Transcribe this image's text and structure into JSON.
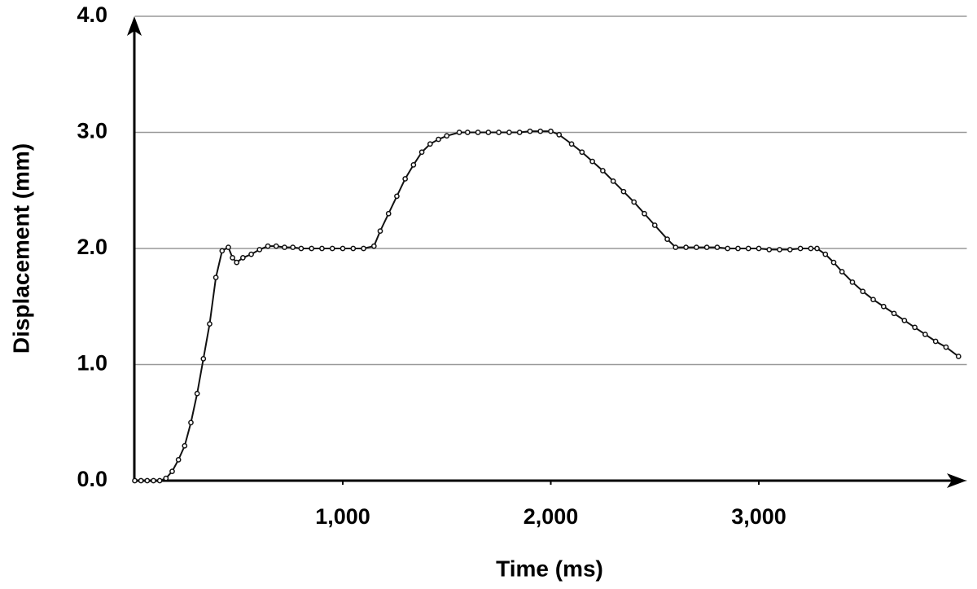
{
  "chart_data": {
    "type": "line",
    "x_label": "Time (ms)",
    "y_label": "Displacement (mm)",
    "xlim": [
      0,
      4000
    ],
    "ylim": [
      0,
      4
    ],
    "xticks": [
      {
        "value": 1000,
        "label": "1,000"
      },
      {
        "value": 2000,
        "label": "2,000"
      },
      {
        "value": 3000,
        "label": "3,000"
      }
    ],
    "yticks": [
      {
        "value": 0,
        "label": "0.0"
      },
      {
        "value": 1,
        "label": "1.0"
      },
      {
        "value": 2,
        "label": "2.0"
      },
      {
        "value": 3,
        "label": "3.0"
      },
      {
        "value": 4,
        "label": "4.0"
      }
    ],
    "grid": true,
    "markers": true,
    "series": [
      {
        "color": "#111111",
        "x": [
          0,
          30,
          60,
          90,
          120,
          150,
          180,
          210,
          240,
          270,
          300,
          330,
          360,
          390,
          420,
          450,
          470,
          490,
          520,
          560,
          600,
          640,
          680,
          720,
          760,
          800,
          850,
          900,
          950,
          1000,
          1050,
          1100,
          1150,
          1180,
          1220,
          1260,
          1300,
          1340,
          1380,
          1420,
          1460,
          1500,
          1560,
          1600,
          1650,
          1700,
          1750,
          1800,
          1850,
          1900,
          1950,
          2000,
          2040,
          2100,
          2150,
          2200,
          2250,
          2300,
          2350,
          2400,
          2450,
          2500,
          2560,
          2600,
          2650,
          2700,
          2750,
          2800,
          2850,
          2900,
          2950,
          3000,
          3050,
          3100,
          3150,
          3200,
          3250,
          3280,
          3320,
          3360,
          3400,
          3450,
          3500,
          3550,
          3600,
          3650,
          3700,
          3750,
          3800,
          3850,
          3900,
          3960
        ],
        "values": [
          0,
          0,
          0,
          0,
          0,
          0.02,
          0.08,
          0.18,
          0.3,
          0.5,
          0.75,
          1.05,
          1.35,
          1.75,
          1.98,
          2.01,
          1.92,
          1.88,
          1.92,
          1.95,
          1.99,
          2.02,
          2.02,
          2.01,
          2.01,
          2.0,
          2.0,
          2.0,
          2.0,
          2.0,
          2.0,
          2.0,
          2.02,
          2.15,
          2.3,
          2.45,
          2.6,
          2.72,
          2.83,
          2.9,
          2.94,
          2.97,
          3.0,
          3.0,
          3.0,
          3.0,
          3.0,
          3.0,
          3.0,
          3.01,
          3.01,
          3.01,
          2.98,
          2.9,
          2.83,
          2.75,
          2.67,
          2.58,
          2.49,
          2.4,
          2.3,
          2.2,
          2.08,
          2.01,
          2.01,
          2.01,
          2.01,
          2.01,
          2.0,
          2.0,
          2.0,
          2.0,
          1.99,
          1.99,
          1.99,
          2.0,
          2.0,
          2.0,
          1.95,
          1.88,
          1.8,
          1.71,
          1.63,
          1.56,
          1.5,
          1.44,
          1.38,
          1.32,
          1.26,
          1.2,
          1.15,
          1.07
        ]
      }
    ]
  }
}
